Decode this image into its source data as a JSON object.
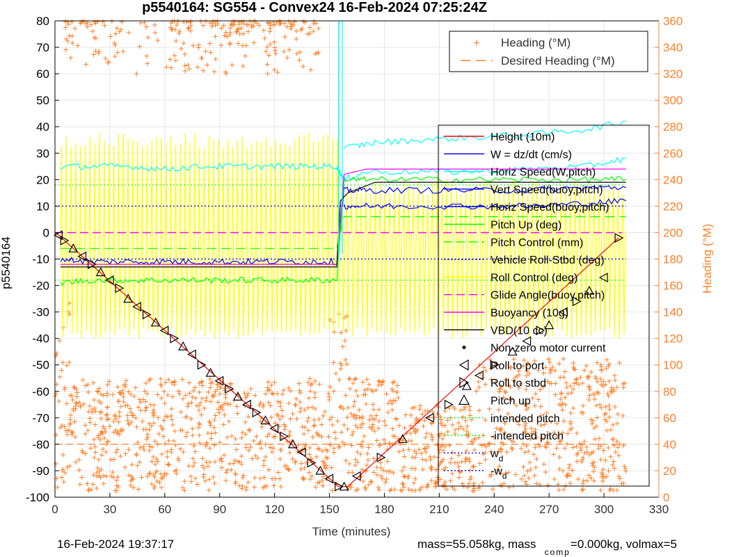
{
  "chart_data": {
    "type": "line",
    "title": "p5540164: SG554 - Convex24 16-Feb-2024 07:25:24Z",
    "xlabel": "Time (minutes)",
    "ylabel_left": "p5540164",
    "ylabel_right": "Heading (°M)",
    "xlim": [
      0,
      330
    ],
    "ylim_left": [
      -100,
      80
    ],
    "ylim_right": [
      0,
      360
    ],
    "x_ticks": [
      "0",
      "30",
      "60",
      "90",
      "120",
      "150",
      "180",
      "210",
      "240",
      "270",
      "300",
      "330"
    ],
    "y_ticks_left": [
      "80",
      "70",
      "60",
      "50",
      "40",
      "30",
      "20",
      "10",
      "0",
      "-10",
      "-20",
      "-30",
      "-40",
      "-50",
      "-60",
      "-70",
      "-80",
      "-90",
      "-100"
    ],
    "y_ticks_right": [
      "360",
      "340",
      "320",
      "300",
      "280",
      "260",
      "240",
      "220",
      "200",
      "180",
      "160",
      "140",
      "120",
      "100",
      "80",
      "60",
      "40",
      "20",
      "0"
    ],
    "grid": true,
    "legend_top": {
      "placement": "top-right",
      "entries": [
        {
          "label": "Heading (°M)",
          "color": "#ff7f27",
          "style": "plus"
        },
        {
          "label": "Desired Heading (°M)",
          "color": "#ff7f27",
          "style": "dash"
        }
      ]
    },
    "legend_main": {
      "placement": "right",
      "entries": [
        {
          "label": "Height (10m)",
          "color": "#ff0000",
          "style": "solid"
        },
        {
          "label": "W = dz/dt (cm/s)",
          "color": "#0000ff",
          "style": "solid"
        },
        {
          "label": "Horiz Speed(W,pitch)",
          "color": "#00ffff",
          "style": "solid"
        },
        {
          "label": "Vert Speed(buoy,pitch)",
          "color": "#0000ff",
          "style": "solid"
        },
        {
          "label": "Horiz Speed(buoy,pitch)",
          "color": "#0000ff",
          "style": "solid"
        },
        {
          "label": "Pitch Up (deg)",
          "color": "#00ff00",
          "style": "solid"
        },
        {
          "label": "Pitch Control (mm)",
          "color": "#00ff00",
          "style": "dash"
        },
        {
          "label": "Vehicle Roll-Stbd (deg)",
          "color": "#0000ff",
          "style": "dot"
        },
        {
          "label": "Roll Control (deg)",
          "color": "#ffff00",
          "style": "solid"
        },
        {
          "label": "Glide Angle(buoy,pitch)",
          "color": "#ff00ff",
          "style": "dash"
        },
        {
          "label": "Buoyancy (10g)",
          "color": "#ff00ff",
          "style": "solid"
        },
        {
          "label": "VBD(10 cc)",
          "color": "#000000",
          "style": "solid"
        },
        {
          "label": "Non-zero motor current",
          "color": "#000000",
          "style": "dot-marker"
        },
        {
          "label": "Roll to port",
          "color": "#000000",
          "style": "tri-left"
        },
        {
          "label": "Roll to stbd",
          "color": "#000000",
          "style": "tri-right"
        },
        {
          "label": "Pitch up",
          "color": "#000000",
          "style": "tri-up"
        },
        {
          "label": "intended pitch",
          "color": "#00ff00",
          "style": "dot"
        },
        {
          "label": "-intended pitch",
          "color": "#00ff00",
          "style": "dot"
        },
        {
          "label": "w",
          "sub": "d",
          "color": "#0000ff",
          "style": "dot"
        },
        {
          "label": "-w",
          "sub": "d",
          "color": "#0000ff",
          "style": "dot"
        }
      ]
    },
    "series": [
      {
        "name": "Height (10m)",
        "color": "#ff0000",
        "x": [
          0,
          2,
          155,
          158,
          160,
          308
        ],
        "y": [
          0,
          -1,
          -96,
          -96,
          -96,
          -2
        ]
      },
      {
        "name": "W = dz/dt (cm/s)",
        "color": "#0000ff",
        "x": [
          3,
          20,
          40,
          60,
          80,
          100,
          120,
          140,
          154,
          158,
          170,
          200,
          230,
          260,
          290,
          312
        ],
        "y": [
          -10,
          -11,
          -11,
          -11,
          -11,
          -11,
          -11,
          -11,
          -11,
          16,
          16,
          16,
          16,
          16,
          17,
          17
        ]
      },
      {
        "name": "Horiz Speed(W,pitch)",
        "color": "#00ffff",
        "x": [
          3,
          20,
          40,
          60,
          80,
          100,
          120,
          140,
          154,
          158,
          170,
          200,
          230,
          260,
          290,
          312
        ],
        "y": [
          25,
          25,
          25,
          24,
          25,
          25,
          25,
          25,
          25,
          20,
          23,
          23,
          23,
          24,
          25,
          28
        ]
      },
      {
        "name": "Horiz Speed(W,pitch) upcast",
        "color": "#00ffff",
        "x": [
          158,
          175,
          200,
          230,
          260,
          290,
          312
        ],
        "y": [
          32,
          34,
          35,
          36,
          37,
          39,
          42
        ]
      },
      {
        "name": "Horiz Speed(buoy,pitch)",
        "color": "#0000ff",
        "x": [
          158,
          170,
          200,
          230,
          260,
          290,
          312
        ],
        "y": [
          10,
          10,
          10,
          10,
          10,
          11,
          12
        ]
      },
      {
        "name": "Pitch Up (deg)",
        "color": "#00ff00",
        "x": [
          3,
          20,
          40,
          60,
          80,
          100,
          120,
          140,
          154,
          158,
          170,
          200,
          230,
          260,
          290,
          312
        ],
        "y": [
          -19,
          -18,
          -18,
          -18,
          -18,
          -18,
          -18,
          -18,
          -18,
          20,
          20,
          20,
          20,
          20,
          20,
          20
        ]
      },
      {
        "name": "Pitch Control (mm)",
        "color": "#00ff00",
        "x": [
          3,
          154,
          158,
          312
        ],
        "y": [
          -6,
          -6,
          6,
          6
        ]
      },
      {
        "name": "Buoyancy (10g)",
        "color": "#ff00ff",
        "x": [
          3,
          154,
          158,
          170,
          312
        ],
        "y": [
          -12,
          -12,
          22,
          24,
          24
        ]
      },
      {
        "name": "VBD(10 cc)",
        "color": "#000000",
        "x": [
          3,
          154,
          156,
          160,
          175,
          312
        ],
        "y": [
          -13,
          -13,
          12,
          15,
          19,
          19
        ]
      }
    ],
    "reference_lines": [
      {
        "name": "intended pitch",
        "y": 18,
        "color": "#00ff00"
      },
      {
        "name": "-intended pitch",
        "y": -18,
        "color": "#00ff00"
      },
      {
        "name": "w_d",
        "y": 10,
        "color": "#0000ff"
      },
      {
        "name": "-w_d",
        "y": -10,
        "color": "#0000ff"
      },
      {
        "name": "Glide Angle(buoy,pitch) dive",
        "y": 0,
        "color": "#ff00ff",
        "range": [
          0,
          310
        ]
      },
      {
        "name": "Desired Heading",
        "y_right": 40,
        "color": "#ff7f27"
      }
    ],
    "roll_control": {
      "color": "#ffff00",
      "low": -40,
      "high_dive": 38,
      "high_climb": 20
    },
    "heading_upper_band": {
      "x_range": [
        5,
        145
      ],
      "y_right_range": [
        320,
        360
      ]
    },
    "heading_lower_band": {
      "x_range": [
        0,
        312
      ],
      "y_right_range": [
        5,
        110
      ]
    },
    "markers": {
      "x": [
        2,
        5,
        10,
        15,
        20,
        25,
        30,
        35,
        40,
        45,
        50,
        55,
        60,
        65,
        70,
        75,
        80,
        85,
        90,
        95,
        100,
        105,
        110,
        115,
        120,
        125,
        130,
        135,
        140,
        145,
        150,
        155,
        158,
        165,
        178,
        190,
        205,
        215,
        225,
        232,
        240,
        250,
        258,
        265,
        270,
        278,
        285,
        292,
        300,
        308
      ],
      "y": [
        -1,
        -3,
        -6,
        -9,
        -12,
        -15,
        -18,
        -21,
        -25,
        -28,
        -31,
        -34,
        -37,
        -40,
        -43,
        -46,
        -50,
        -53,
        -56,
        -59,
        -62,
        -65,
        -68,
        -71,
        -74,
        -77,
        -80,
        -83,
        -87,
        -90,
        -93,
        -96,
        -96,
        -92,
        -85,
        -78,
        -70,
        -65,
        -58,
        -54,
        -50,
        -45,
        -41,
        -37,
        -35,
        -30,
        -26,
        -22,
        -17,
        -2
      ]
    }
  },
  "footer": {
    "timestamp": "16-Feb-2024 19:37:17",
    "mass_text_a": "mass=55.058kg, mass",
    "mass_sub": "comp",
    "mass_text_b": "=0.000kg, volmax=5"
  }
}
